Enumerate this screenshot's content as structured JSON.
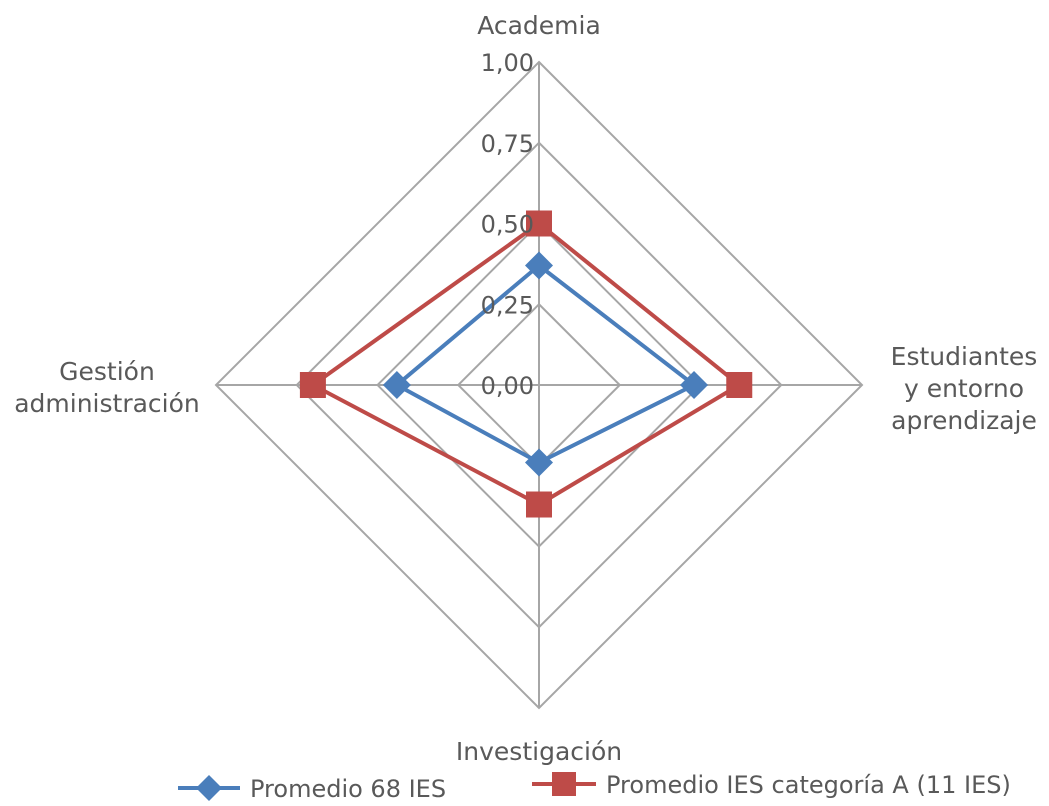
{
  "chart_data": {
    "type": "radar",
    "axes": [
      {
        "key": "academia",
        "label_lines": [
          "Academia"
        ]
      },
      {
        "key": "estudiantes",
        "label_lines": [
          "Estudiantes",
          "y entorno",
          "aprendizaje"
        ]
      },
      {
        "key": "investigacion",
        "label_lines": [
          "Investigación"
        ]
      },
      {
        "key": "gestion",
        "label_lines": [
          "Gestión",
          "administración"
        ]
      }
    ],
    "rlim": [
      0,
      1
    ],
    "ticks": [
      {
        "value": 0,
        "label": "0,00"
      },
      {
        "value": 0.25,
        "label": "0,25"
      },
      {
        "value": 0.5,
        "label": "0,50"
      },
      {
        "value": 0.75,
        "label": "0,75"
      },
      {
        "value": 1,
        "label": "1,00"
      }
    ],
    "grid": true,
    "legend_position": "bottom",
    "series": [
      {
        "name": "Promedio 68 IES",
        "color": "#4a7ebb",
        "marker": "diamond",
        "values": [
          0.37,
          0.48,
          0.24,
          0.44
        ]
      },
      {
        "name": "Promedio IES categoría A (11 IES)",
        "color": "#be4b48",
        "marker": "square",
        "values": [
          0.5,
          0.62,
          0.37,
          0.7
        ]
      }
    ]
  }
}
